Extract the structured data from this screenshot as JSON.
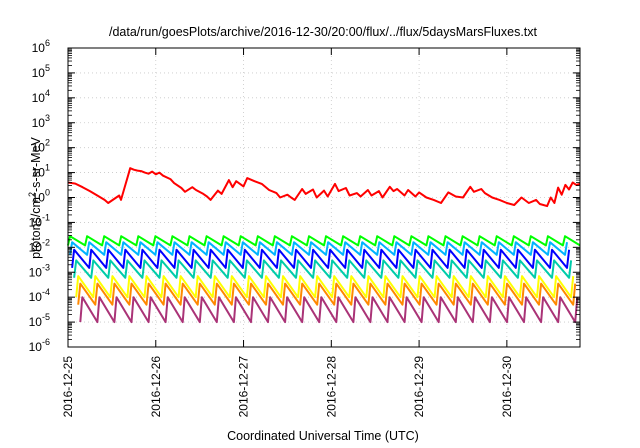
{
  "chart_data": {
    "type": "line",
    "title": "/data/run/goesPlots/archive/2016-12-30/20:00/flux/../flux/5daysMarsFluxes.txt",
    "xlabel": "Coordinated Universal Time (UTC)",
    "ylabel": {
      "prefix": "protons/cm",
      "sup": "2",
      "suffix": "-s-sr-MeV"
    },
    "yscale": "log",
    "ylim": [
      1e-06,
      1000000.0
    ],
    "xlim": [
      "2016-12-25",
      "2016-12-30T20:00"
    ],
    "x_tick_labels": [
      "2016-12-25",
      "2016-12-26",
      "2016-12-27",
      "2016-12-28",
      "2016-12-29",
      "2016-12-30"
    ],
    "y_tick_labels": [
      {
        "base": "10",
        "exp": "-6"
      },
      {
        "base": "10",
        "exp": "-5"
      },
      {
        "base": "10",
        "exp": "-4"
      },
      {
        "base": "10",
        "exp": "-3"
      },
      {
        "base": "10",
        "exp": "-2"
      },
      {
        "base": "10",
        "exp": "-1"
      },
      {
        "base": "10",
        "exp": "0"
      },
      {
        "base": "10",
        "exp": "1"
      },
      {
        "base": "10",
        "exp": "2"
      },
      {
        "base": "10",
        "exp": "3"
      },
      {
        "base": "10",
        "exp": "4"
      },
      {
        "base": "10",
        "exp": "5"
      },
      {
        "base": "10",
        "exp": "6"
      }
    ],
    "grid": true,
    "legend": false,
    "series": [
      {
        "color": "#ff0000",
        "x": [
          "2016-12-25T00:00",
          "2016-12-25T02:00",
          "2016-12-25T04:00",
          "2016-12-25T06:00",
          "2016-12-25T08:00",
          "2016-12-25T10:00",
          "2016-12-25T11:00",
          "2016-12-25T14:00",
          "2016-12-25T14:30",
          "2016-12-25T17:00",
          "2016-12-25T18:00",
          "2016-12-25T19:00",
          "2016-12-25T20:00",
          "2016-12-25T21:00",
          "2016-12-25T22:00",
          "2016-12-25T23:00",
          "2016-12-26T00:00",
          "2016-12-26T01:00",
          "2016-12-26T02:00",
          "2016-12-26T04:00",
          "2016-12-26T05:00",
          "2016-12-26T07:00",
          "2016-12-26T08:00",
          "2016-12-26T10:00",
          "2016-12-26T11:00",
          "2016-12-26T13:00",
          "2016-12-26T14:00",
          "2016-12-26T15:00",
          "2016-12-26T17:00",
          "2016-12-26T18:00",
          "2016-12-26T20:00",
          "2016-12-26T21:00",
          "2016-12-26T22:00",
          "2016-12-27T00:00",
          "2016-12-27T01:00",
          "2016-12-27T03:00",
          "2016-12-27T05:00",
          "2016-12-27T07:00",
          "2016-12-27T09:00",
          "2016-12-27T10:00",
          "2016-12-27T12:00",
          "2016-12-27T13:00",
          "2016-12-27T14:00",
          "2016-12-27T16:00",
          "2016-12-27T17:00",
          "2016-12-27T19:00",
          "2016-12-27T20:00",
          "2016-12-27T22:00",
          "2016-12-27T23:00",
          "2016-12-28T01:00",
          "2016-12-28T02:00",
          "2016-12-28T04:00",
          "2016-12-28T05:00",
          "2016-12-28T07:00",
          "2016-12-28T08:00",
          "2016-12-28T10:00",
          "2016-12-28T11:00",
          "2016-12-28T13:00",
          "2016-12-28T14:00",
          "2016-12-28T16:00",
          "2016-12-28T17:00",
          "2016-12-28T18:00",
          "2016-12-28T20:00",
          "2016-12-28T21:00",
          "2016-12-28T23:00",
          "2016-12-29T00:00",
          "2016-12-29T02:00",
          "2016-12-29T04:00",
          "2016-12-29T06:00",
          "2016-12-29T08:00",
          "2016-12-29T10:00",
          "2016-12-29T12:00",
          "2016-12-29T14:00",
          "2016-12-29T15:00",
          "2016-12-29T17:00",
          "2016-12-29T18:00",
          "2016-12-29T20:00",
          "2016-12-29T22:00",
          "2016-12-30T00:00",
          "2016-12-30T02:00",
          "2016-12-30T04:00",
          "2016-12-30T06:00",
          "2016-12-30T08:00",
          "2016-12-30T09:00",
          "2016-12-30T10:00",
          "2016-12-30T11:00",
          "2016-12-30T12:00",
          "2016-12-30T13:00",
          "2016-12-30T14:00",
          "2016-12-30T15:00",
          "2016-12-30T16:00",
          "2016-12-30T17:00",
          "2016-12-30T18:00",
          "2016-12-30T19:00",
          "2016-12-30T20:00"
        ],
        "y": [
          4,
          3.6,
          2.6,
          1.8,
          1.2,
          0.8,
          0.6,
          1.2,
          0.8,
          15,
          13,
          12,
          11.5,
          10,
          9,
          11,
          8.5,
          10,
          7.5,
          5.5,
          3.8,
          2.4,
          1.7,
          2.6,
          2.0,
          1.4,
          1.1,
          0.8,
          1.9,
          1.4,
          5,
          2.6,
          4.5,
          2.8,
          6,
          4.5,
          3.5,
          2.0,
          1.5,
          1.0,
          1.3,
          1.0,
          0.8,
          2.2,
          1.4,
          2.1,
          1.0,
          1.9,
          1.1,
          3.5,
          1.8,
          2.4,
          1.2,
          1.5,
          1.1,
          2.0,
          1.2,
          1.8,
          1.0,
          2.7,
          1.8,
          2.2,
          1.2,
          2.0,
          1.1,
          1.6,
          1.0,
          0.8,
          0.6,
          1.6,
          1.1,
          1.0,
          2.7,
          1.7,
          2.2,
          1.5,
          1.0,
          0.8,
          0.6,
          0.5,
          1.0,
          0.6,
          0.8,
          0.55,
          0.5,
          0.45,
          1.0,
          0.6,
          2.5,
          1.3,
          3.2,
          2.1,
          4,
          3.2,
          3.5
        ]
      }
    ],
    "sawtooth_series": [
      {
        "color": "#00ff00",
        "peak": 0.028,
        "trough": 0.012,
        "cycles": 30,
        "phase": 0.0
      },
      {
        "color": "#00b4ff",
        "peak": 0.016,
        "trough": 0.005,
        "cycles": 30,
        "phase": 0.12
      },
      {
        "color": "#0000ff",
        "peak": 0.008,
        "trough": 0.0015,
        "cycles": 30,
        "phase": 0.24
      },
      {
        "color": "#00ccaa",
        "peak": 0.003,
        "trough": 0.0006,
        "cycles": 30,
        "phase": 0.36
      },
      {
        "color": "#ffff00",
        "peak": 0.0007,
        "trough": 0.0001,
        "cycles": 30,
        "phase": 0.48
      },
      {
        "color": "#ff8800",
        "peak": 0.00035,
        "trough": 5e-05,
        "cycles": 30,
        "phase": 0.6
      },
      {
        "color": "#aa3377",
        "peak": 0.0001,
        "trough": 1e-05,
        "cycles": 30,
        "phase": 0.72
      }
    ]
  }
}
